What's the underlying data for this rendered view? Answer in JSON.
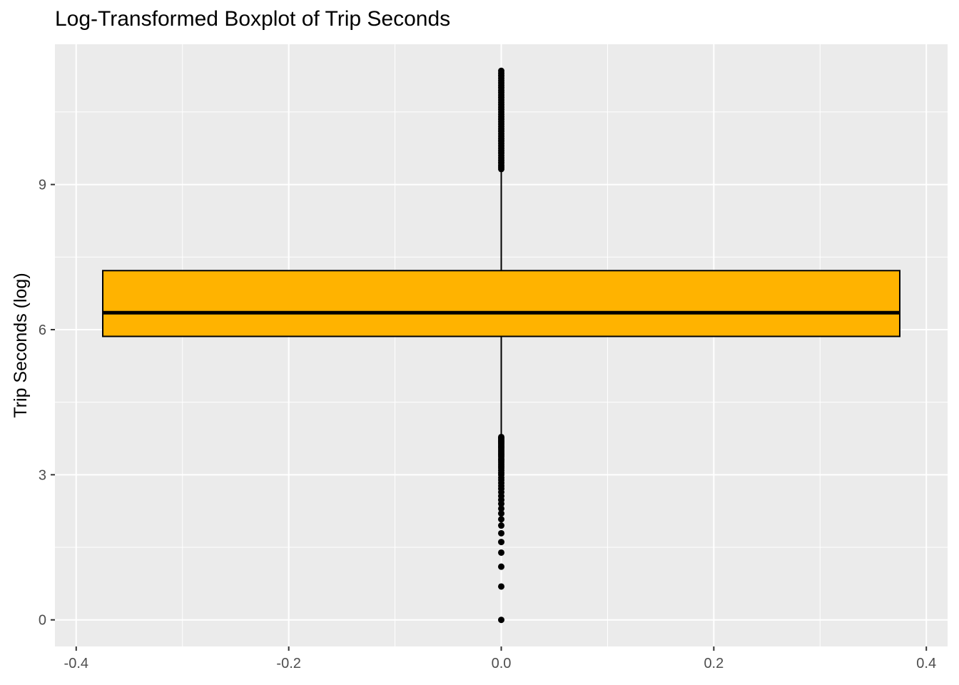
{
  "chart_data": {
    "type": "boxplot",
    "title": "Log-Transformed Boxplot of Trip Seconds",
    "xlabel": "",
    "ylabel": "Trip Seconds (log)",
    "xlim": [
      -0.42,
      0.42
    ],
    "ylim": [
      -0.55,
      11.9
    ],
    "x_ticks": [
      -0.4,
      -0.2,
      0.0,
      0.2,
      0.4
    ],
    "x_tick_labels": [
      "-0.4",
      "-0.2",
      "0.0",
      "0.2",
      "0.4"
    ],
    "y_ticks": [
      0,
      3,
      6,
      9
    ],
    "y_tick_labels": [
      "0",
      "3",
      "6",
      "9"
    ],
    "grid": true,
    "box": {
      "x": 0.0,
      "x_min": -0.375,
      "x_max": 0.375,
      "q1": 5.86,
      "median": 6.35,
      "q3": 7.22,
      "whisker_low": 3.82,
      "whisker_high": 9.3,
      "fill": "#FFB300",
      "outline": "#000000"
    },
    "outliers_high": [
      9.32,
      9.36,
      9.4,
      9.45,
      9.5,
      9.55,
      9.6,
      9.65,
      9.7,
      9.75,
      9.8,
      9.85,
      9.9,
      9.95,
      10.0,
      10.05,
      10.1,
      10.15,
      10.2,
      10.25,
      10.3,
      10.35,
      10.4,
      10.45,
      10.5,
      10.55,
      10.6,
      10.65,
      10.7,
      10.75,
      10.8,
      10.85,
      10.9,
      10.95,
      11.0,
      11.05,
      11.1,
      11.15,
      11.2,
      11.25,
      11.3,
      11.35
    ],
    "outliers_low": [
      0.0,
      0.69,
      1.1,
      1.39,
      1.61,
      1.79,
      1.95,
      2.08,
      2.2,
      2.3,
      2.4,
      2.48,
      2.56,
      2.64,
      2.71,
      2.77,
      2.83,
      2.89,
      2.94,
      3.0,
      3.04,
      3.09,
      3.14,
      3.18,
      3.22,
      3.26,
      3.3,
      3.33,
      3.37,
      3.4,
      3.43,
      3.47,
      3.5,
      3.53,
      3.56,
      3.58,
      3.61,
      3.64,
      3.66,
      3.69,
      3.71,
      3.74,
      3.76,
      3.78
    ],
    "colors": {
      "panel_background": "#EBEBEB",
      "grid": "#FFFFFF",
      "points": "#000000"
    }
  }
}
